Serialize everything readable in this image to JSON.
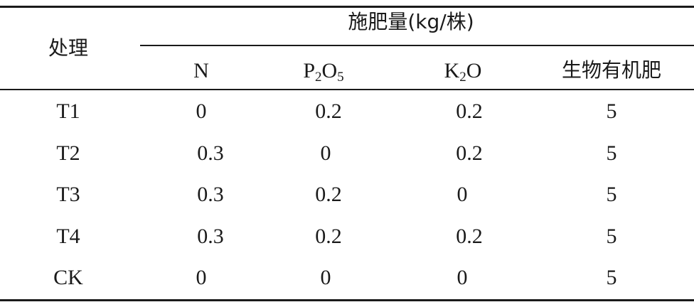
{
  "table": {
    "row_header": "处理",
    "group_header": "施肥量(kg/株)",
    "columns": {
      "n": "N",
      "p2o5": {
        "base1": "P",
        "sub1": "2",
        "base2": "O",
        "sub2": "5"
      },
      "k2o": {
        "base1": "K",
        "sub1": "2",
        "base2": "O"
      },
      "organic": "生物有机肥"
    },
    "rows": [
      {
        "label": "T1",
        "n": "0",
        "p2o5": "0.2",
        "k2o": "0.2",
        "organic": "5"
      },
      {
        "label": "T2",
        "n": "0.3",
        "p2o5": "0",
        "k2o": "0.2",
        "organic": "5"
      },
      {
        "label": "T3",
        "n": "0.3",
        "p2o5": "0.2",
        "k2o": "0",
        "organic": "5"
      },
      {
        "label": "T4",
        "n": "0.3",
        "p2o5": "0.2",
        "k2o": "0.2",
        "organic": "5"
      },
      {
        "label": "CK",
        "n": "0",
        "p2o5": "0",
        "k2o": "0",
        "organic": "5"
      }
    ]
  }
}
